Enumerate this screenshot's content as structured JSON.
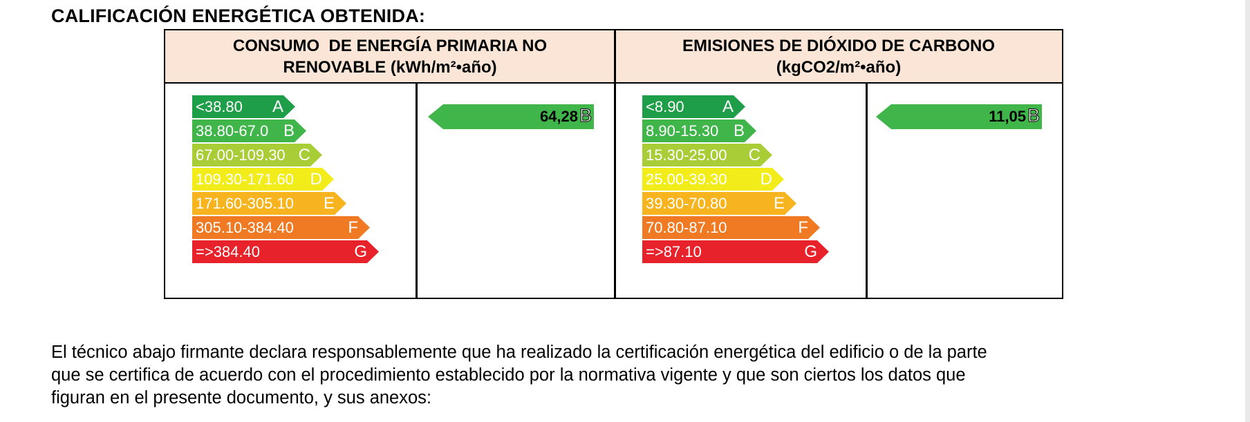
{
  "title": "CALIFICACIÓN ENERGÉTICA OBTENIDA:",
  "primary_energy": {
    "header_line1": "CONSUMO  DE ENERGÍA PRIMARIA NO",
    "header_line2": "RENOVABLE (kWh/m²•año)",
    "bars": [
      {
        "range": "<38.80",
        "letter": "A",
        "color": "#1e9e48"
      },
      {
        "range": "38.80-67.0",
        "letter": "B",
        "color": "#3fb54a"
      },
      {
        "range": "67.00-109.30",
        "letter": "C",
        "color": "#a9cd37"
      },
      {
        "range": "109.30-171.60",
        "letter": "D",
        "color": "#f2ec1b"
      },
      {
        "range": "171.60-305.10",
        "letter": "E",
        "color": "#f7b41f"
      },
      {
        "range": "305.10-384.40",
        "letter": "F",
        "color": "#ef7a23"
      },
      {
        "range": "=>384.40",
        "letter": "G",
        "color": "#e8222a"
      }
    ],
    "result": {
      "value": "64,28",
      "letter": "B",
      "color": "#3fb54a"
    }
  },
  "co2_emissions": {
    "header_line1": "EMISIONES DE DIÓXIDO DE CARBONO",
    "header_line2": "(kgCO2/m²•año)",
    "bars": [
      {
        "range": "<8.90",
        "letter": "A",
        "color": "#1e9e48"
      },
      {
        "range": "8.90-15.30",
        "letter": "B",
        "color": "#3fb54a"
      },
      {
        "range": "15.30-25.00",
        "letter": "C",
        "color": "#a9cd37"
      },
      {
        "range": "25.00-39.30",
        "letter": "D",
        "color": "#f2ec1b"
      },
      {
        "range": "39.30-70.80",
        "letter": "E",
        "color": "#f7b41f"
      },
      {
        "range": "70.80-87.10",
        "letter": "F",
        "color": "#ef7a23"
      },
      {
        "range": "=>87.10",
        "letter": "G",
        "color": "#e8222a"
      }
    ],
    "result": {
      "value": "11,05",
      "letter": "B",
      "color": "#3fb54a"
    }
  },
  "declaration": {
    "line1": "El técnico abajo firmante declara responsablemente que ha realizado la certificación energética del edificio o de la parte",
    "line2": "que se certifica de acuerdo con el procedimiento establecido por la normativa vigente y que son ciertos los datos que",
    "line3": "figuran en el presente documento, y sus anexos:"
  }
}
